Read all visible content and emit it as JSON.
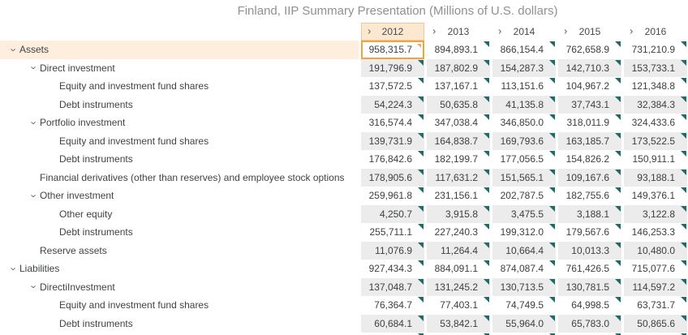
{
  "title": "Finland, IIP Summary Presentation (Millions of U.S. dollars)",
  "columns": [
    "2012",
    "2013",
    "2014",
    "2015",
    "2016"
  ],
  "selected_cell": {
    "row": 0,
    "col": 0,
    "value": "958,315.7"
  },
  "icons": {
    "column_chevron": "›",
    "row_chevron": "›",
    "comment_marker": "corner-triangle"
  },
  "colors": {
    "highlight_peach": "#fdeedd",
    "header_peach": "#fce8d1",
    "selected_border_orange": "#f2a33c",
    "cell_gray": "#ececec",
    "marker_teal": "#1f6b68",
    "title_gray": "#8e9093"
  },
  "rows": [
    {
      "label": "Assets",
      "indent": 0,
      "chevron": true,
      "highlight": true,
      "values": [
        "958,315.7",
        "894,893.1",
        "866,154.4",
        "762,658.9",
        "731,210.9"
      ]
    },
    {
      "label": "Direct investment",
      "indent": 1,
      "chevron": true,
      "values": [
        "191,796.9",
        "187,802.9",
        "154,287.3",
        "142,710.3",
        "153,733.1"
      ]
    },
    {
      "label": "Equity and investment fund shares",
      "indent": 2,
      "chevron": false,
      "values": [
        "137,572.5",
        "137,167.1",
        "113,151.6",
        "104,967.2",
        "121,348.8"
      ]
    },
    {
      "label": "Debt instruments",
      "indent": 2,
      "chevron": false,
      "values": [
        "54,224.3",
        "50,635.8",
        "41,135.8",
        "37,743.1",
        "32,384.3"
      ]
    },
    {
      "label": "Portfolio investment",
      "indent": 1,
      "chevron": true,
      "values": [
        "316,574.4",
        "347,038.4",
        "346,850.0",
        "318,011.9",
        "324,433.6"
      ]
    },
    {
      "label": "Equity and investment fund shares",
      "indent": 2,
      "chevron": false,
      "values": [
        "139,731.9",
        "164,838.7",
        "169,793.6",
        "163,185.7",
        "173,522.5"
      ]
    },
    {
      "label": "Debt instruments",
      "indent": 2,
      "chevron": false,
      "values": [
        "176,842.6",
        "182,199.7",
        "177,056.5",
        "154,826.2",
        "150,911.1"
      ]
    },
    {
      "label": "Financial derivatives (other than reserves) and employee stock options",
      "indent": 1,
      "chevron": false,
      "values": [
        "178,905.6",
        "117,631.2",
        "151,565.1",
        "109,167.6",
        "93,188.1"
      ]
    },
    {
      "label": "Other investment",
      "indent": 1,
      "chevron": true,
      "values": [
        "259,961.8",
        "231,156.1",
        "202,787.5",
        "182,755.6",
        "149,376.1"
      ]
    },
    {
      "label": "Other equity",
      "indent": 2,
      "chevron": false,
      "values": [
        "4,250.7",
        "3,915.8",
        "3,475.5",
        "3,188.1",
        "3,122.8"
      ]
    },
    {
      "label": "Debt instruments",
      "indent": 2,
      "chevron": false,
      "values": [
        "255,711.1",
        "227,240.3",
        "199,312.0",
        "179,567.6",
        "146,253.3"
      ]
    },
    {
      "label": "Reserve assets",
      "indent": 1,
      "chevron": false,
      "values": [
        "11,076.9",
        "11,264.4",
        "10,664.4",
        "10,013.3",
        "10,480.0"
      ]
    },
    {
      "label": "Liabilities",
      "indent": 0,
      "chevron": true,
      "values": [
        "927,434.3",
        "884,091.1",
        "874,087.4",
        "761,426.5",
        "715,077.6"
      ]
    },
    {
      "label": "DirectiInvestment",
      "indent": 1,
      "chevron": true,
      "values": [
        "137,048.7",
        "131,245.2",
        "130,713.5",
        "130,781.5",
        "114,597.2"
      ]
    },
    {
      "label": "Equity and investment fund shares",
      "indent": 2,
      "chevron": false,
      "values": [
        "76,364.7",
        "77,403.1",
        "74,749.5",
        "64,998.5",
        "63,731.7"
      ]
    },
    {
      "label": "Debt instruments",
      "indent": 2,
      "chevron": false,
      "values": [
        "60,684.1",
        "53,842.1",
        "55,964.0",
        "65,783.0",
        "50,865.6"
      ]
    },
    {
      "label": "",
      "indent": 2,
      "chevron": false,
      "partial": true,
      "values": [
        "",
        "",
        "",
        "",
        ""
      ]
    }
  ]
}
